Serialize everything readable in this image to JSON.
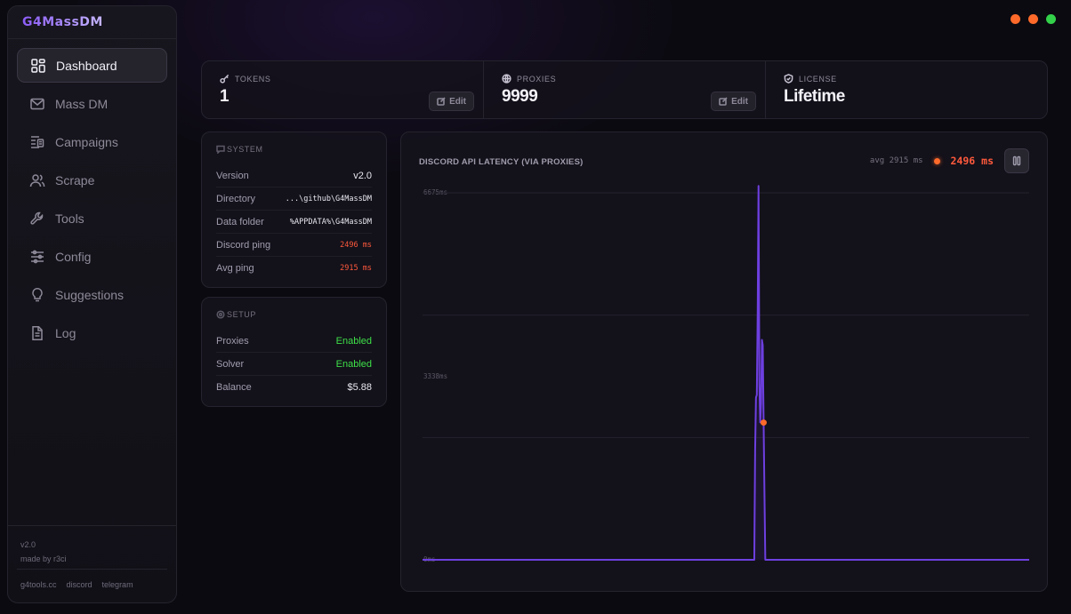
{
  "window": {
    "controls": [
      {
        "name": "minimize",
        "color": "#ff6a2a"
      },
      {
        "name": "maximize",
        "color": "#ff6a2a"
      },
      {
        "name": "close",
        "color": "#33d14a"
      }
    ]
  },
  "sidebar": {
    "brand": "G4MassDM",
    "items": [
      {
        "label": "Dashboard",
        "icon": "grid-icon",
        "active": true
      },
      {
        "label": "Mass DM",
        "icon": "mail-icon",
        "active": false
      },
      {
        "label": "Campaigns",
        "icon": "campaign-list-icon",
        "active": false
      },
      {
        "label": "Scrape",
        "icon": "users-icon",
        "active": false
      },
      {
        "label": "Tools",
        "icon": "wrench-icon",
        "active": false
      },
      {
        "label": "Config",
        "icon": "sliders-icon",
        "active": false
      },
      {
        "label": "Suggestions",
        "icon": "lightbulb-icon",
        "active": false
      },
      {
        "label": "Log",
        "icon": "document-icon",
        "active": false
      }
    ],
    "version": "v2.0",
    "credit": "made by r3ci",
    "links": [
      "g4tools.cc",
      "discord",
      "telegram"
    ]
  },
  "stats": {
    "tokens": {
      "label": "TOKENS",
      "value": "1",
      "edit": "Edit",
      "icon": "key-icon"
    },
    "proxies": {
      "label": "PROXIES",
      "value": "9999",
      "edit": "Edit",
      "icon": "globe-icon"
    },
    "license": {
      "label": "LICENSE",
      "value": "Lifetime",
      "icon": "shield-check-icon"
    }
  },
  "system": {
    "title": "SYSTEM",
    "rows": [
      {
        "label": "Version",
        "value": "v2.0"
      },
      {
        "label": "Directory",
        "value": "...\\github\\G4MassDM"
      },
      {
        "label": "Data folder",
        "value": "%APPDATA%\\G4MassDM"
      },
      {
        "label": "Discord ping",
        "value": "2496 ms"
      },
      {
        "label": "Avg ping",
        "value": "2915 ms"
      }
    ]
  },
  "setup": {
    "title": "SETUP",
    "rows": [
      {
        "label": "Proxies",
        "value": "Enabled"
      },
      {
        "label": "Solver",
        "value": "Enabled"
      },
      {
        "label": "Balance",
        "value": "$5.88"
      }
    ]
  },
  "chart": {
    "title": "DISCORD API LATENCY (VIA PROXIES)",
    "avg_label": "avg 2915 ms",
    "current_label": "2496 ms"
  },
  "chart_data": {
    "type": "line",
    "title": "DISCORD API LATENCY (VIA PROXIES)",
    "ylabel": "",
    "xlabel": "",
    "ylim": [
      0,
      6675
    ],
    "yticks": [
      "6675ms",
      "3338ms",
      "0ms"
    ],
    "grid": true,
    "color": "#6d3fe0",
    "marker_color": "#ff6a2a",
    "series": [
      {
        "values": [
          0,
          0,
          0,
          0,
          0,
          0,
          0,
          0,
          0,
          0,
          0,
          0,
          0,
          0,
          0,
          0,
          0,
          0,
          0,
          0,
          0,
          0,
          0,
          0,
          0,
          0,
          0,
          0,
          0,
          0,
          0,
          0,
          0,
          0,
          0,
          0,
          0,
          0,
          0,
          0,
          0,
          0,
          0,
          0,
          0,
          0,
          0,
          0,
          0,
          0,
          0,
          0,
          0,
          0,
          0,
          0,
          0,
          0,
          0,
          0,
          0,
          0,
          0,
          0,
          0,
          0,
          0,
          0,
          0,
          0,
          0,
          0,
          0,
          0,
          0,
          0,
          0,
          0,
          0,
          0,
          0,
          0,
          0,
          0,
          0,
          0,
          0,
          0,
          0,
          0,
          0,
          0,
          0,
          0,
          0,
          0,
          0,
          0,
          0,
          0,
          0,
          0,
          0,
          0,
          0,
          0,
          0,
          0,
          0,
          0,
          0,
          0,
          0,
          0,
          0,
          0,
          0,
          0,
          0,
          0,
          0,
          0,
          0,
          0,
          0,
          0,
          0,
          0,
          0,
          0,
          0,
          0,
          0,
          0,
          0,
          0,
          0,
          0,
          0,
          0,
          0,
          0,
          0,
          0,
          0,
          0,
          0,
          0,
          0,
          0,
          0,
          0,
          0,
          0,
          0,
          0,
          0,
          0,
          0,
          0,
          0,
          0,
          0,
          0,
          0,
          0,
          0,
          0,
          0,
          0,
          0,
          0,
          0,
          0,
          0,
          0,
          0,
          0,
          0,
          0,
          0,
          0,
          0,
          0,
          0,
          0,
          0,
          0,
          0,
          0,
          0,
          0,
          0,
          0,
          0,
          0,
          0,
          0,
          0,
          0,
          0,
          0,
          0,
          0,
          0,
          0,
          0,
          0,
          0,
          0,
          0,
          0,
          0,
          0,
          0,
          0,
          0,
          0,
          0,
          0,
          0,
          0,
          0,
          0,
          0,
          0,
          0,
          0,
          0,
          0,
          0,
          0,
          0,
          0,
          0,
          0,
          0,
          0,
          0,
          0,
          0,
          0,
          0,
          0,
          0,
          0,
          0,
          0,
          0,
          0,
          0,
          0,
          0,
          0,
          0,
          0,
          0,
          0,
          0,
          0,
          0,
          0,
          0,
          0,
          0,
          0,
          0,
          0,
          0,
          0,
          0,
          0,
          0,
          0,
          0,
          0,
          0,
          0,
          0,
          0,
          0,
          0,
          0,
          0,
          0,
          0,
          0,
          0,
          0,
          0,
          0,
          0,
          0,
          0,
          0,
          0,
          0,
          0,
          0,
          0,
          0,
          0,
          0,
          0,
          0,
          0,
          0,
          0,
          0,
          0,
          0,
          0,
          0,
          0,
          0,
          0,
          0,
          0,
          0,
          0,
          0,
          0,
          0,
          0,
          0,
          0,
          0,
          0,
          0,
          0,
          0,
          0,
          0,
          0,
          0,
          0,
          0,
          0,
          0,
          0,
          0,
          0,
          0,
          0,
          0,
          0,
          0,
          0,
          0,
          0,
          0,
          0,
          0,
          0,
          0,
          0,
          0,
          0,
          0,
          0,
          0,
          0,
          0,
          0,
          0,
          0,
          0,
          0,
          0,
          0,
          0,
          0,
          0,
          0,
          0,
          0,
          0,
          0,
          0,
          0,
          0,
          0,
          0,
          0,
          0,
          0,
          0,
          0,
          0,
          0,
          0,
          0,
          2000,
          2950,
          3000,
          4500,
          6800,
          3200,
          2500,
          2850,
          4000,
          3900,
          2500,
          1200,
          0,
          0,
          0,
          0,
          0,
          0,
          0,
          0,
          0,
          0,
          0,
          0,
          0,
          0,
          0,
          0,
          0,
          0,
          0,
          0,
          0,
          0,
          0,
          0,
          0,
          0,
          0,
          0,
          0,
          0,
          0,
          0,
          0,
          0,
          0,
          0,
          0,
          0,
          0,
          0,
          0,
          0,
          0,
          0,
          0,
          0,
          0,
          0,
          0,
          0,
          0,
          0,
          0,
          0,
          0,
          0,
          0,
          0,
          0,
          0,
          0,
          0,
          0,
          0,
          0,
          0,
          0,
          0,
          0,
          0,
          0,
          0,
          0,
          0,
          0,
          0,
          0,
          0,
          0,
          0,
          0,
          0,
          0,
          0,
          0,
          0,
          0,
          0,
          0,
          0,
          0,
          0,
          0,
          0,
          0,
          0,
          0,
          0,
          0,
          0,
          0,
          0,
          0,
          0,
          0,
          0,
          0,
          0,
          0,
          0,
          0,
          0,
          0,
          0,
          0,
          0,
          0,
          0,
          0,
          0,
          0,
          0,
          0,
          0,
          0,
          0,
          0,
          0,
          0,
          0,
          0,
          0,
          0,
          0,
          0,
          0,
          0,
          0,
          0,
          0,
          0,
          0,
          0,
          0,
          0,
          0,
          0,
          0,
          0,
          0,
          0,
          0,
          0,
          0,
          0,
          0,
          0,
          0,
          0,
          0,
          0,
          0,
          0,
          0,
          0,
          0,
          0,
          0,
          0,
          0,
          0,
          0,
          0,
          0,
          0,
          0,
          0,
          0,
          0,
          0,
          0,
          0,
          0,
          0,
          0,
          0,
          0,
          0,
          0,
          0,
          0,
          0,
          0,
          0,
          0,
          0,
          0,
          0,
          0,
          0,
          0,
          0,
          0,
          0,
          0,
          0,
          0,
          0,
          0,
          0,
          0,
          0,
          0,
          0,
          0,
          0,
          0,
          0,
          0,
          0,
          0,
          0,
          0,
          0,
          0,
          0,
          0,
          0,
          0,
          0,
          0,
          0,
          0,
          0,
          0,
          0,
          0,
          0,
          0,
          0,
          0,
          0,
          0,
          0,
          0,
          0,
          0,
          0,
          0,
          0,
          0,
          0,
          0,
          0,
          0,
          0,
          0,
          0,
          0,
          0,
          0,
          0,
          0,
          0,
          0,
          0,
          0,
          0,
          0,
          0,
          0,
          0,
          0,
          0,
          0,
          0,
          0,
          0,
          0,
          0,
          0,
          0,
          0,
          0,
          0,
          0,
          0,
          0,
          0,
          0,
          0,
          0,
          0,
          0,
          0,
          0,
          0,
          0,
          0,
          0,
          0,
          0,
          0,
          0,
          0,
          0,
          0,
          0,
          0,
          0,
          0,
          0
        ]
      }
    ],
    "current_value": 2496
  }
}
